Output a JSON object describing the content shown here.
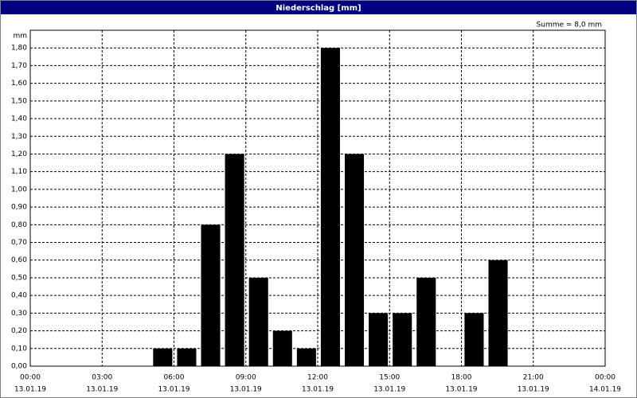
{
  "chart_data": {
    "type": "bar",
    "title": "Niederschlag [mm]",
    "y_unit": "mm",
    "annotation": "Summe = 8,0 mm",
    "x": [
      5,
      6,
      7,
      8,
      9,
      10,
      11,
      12,
      13,
      14,
      15,
      16,
      17,
      18,
      19
    ],
    "values": [
      0.1,
      0.1,
      0.8,
      1.2,
      0.5,
      0.2,
      0.1,
      1.8,
      1.2,
      0.3,
      0.3,
      0.5,
      0,
      0.3,
      0.6
    ],
    "color": "#000000",
    "xlim": [
      0,
      24
    ],
    "xticks": [
      {
        "value": 0,
        "label": "00:00",
        "date": "13.01.19"
      },
      {
        "value": 3,
        "label": "03:00",
        "date": "13.01.19"
      },
      {
        "value": 6,
        "label": "06:00",
        "date": "13.01.19"
      },
      {
        "value": 9,
        "label": "09:00",
        "date": "13.01.19"
      },
      {
        "value": 12,
        "label": "12:00",
        "date": "13.01.19"
      },
      {
        "value": 15,
        "label": "15:00",
        "date": "13.01.19"
      },
      {
        "value": 18,
        "label": "18:00",
        "date": "13.01.19"
      },
      {
        "value": 21,
        "label": "21:00",
        "date": "13.01.19"
      },
      {
        "value": 24,
        "label": "00:00",
        "date": "14.01.19"
      }
    ],
    "ylim": [
      0,
      1.9
    ],
    "yticks": [
      {
        "value": 0,
        "label": "0,00"
      },
      {
        "value": 0.1,
        "label": "0,10"
      },
      {
        "value": 0.2,
        "label": "0,20"
      },
      {
        "value": 0.3,
        "label": "0,30"
      },
      {
        "value": 0.4,
        "label": "0,40"
      },
      {
        "value": 0.5,
        "label": "0,50"
      },
      {
        "value": 0.6,
        "label": "0,60"
      },
      {
        "value": 0.7,
        "label": "0,70"
      },
      {
        "value": 0.8,
        "label": "0,80"
      },
      {
        "value": 0.9,
        "label": "0,90"
      },
      {
        "value": 1.0,
        "label": "1,00"
      },
      {
        "value": 1.1,
        "label": "1,10"
      },
      {
        "value": 1.2,
        "label": "1,20"
      },
      {
        "value": 1.3,
        "label": "1,30"
      },
      {
        "value": 1.4,
        "label": "1,40"
      },
      {
        "value": 1.5,
        "label": "1,50"
      },
      {
        "value": 1.6,
        "label": "1,60"
      },
      {
        "value": 1.7,
        "label": "1,70"
      },
      {
        "value": 1.8,
        "label": "1,80"
      }
    ],
    "grid": true
  }
}
